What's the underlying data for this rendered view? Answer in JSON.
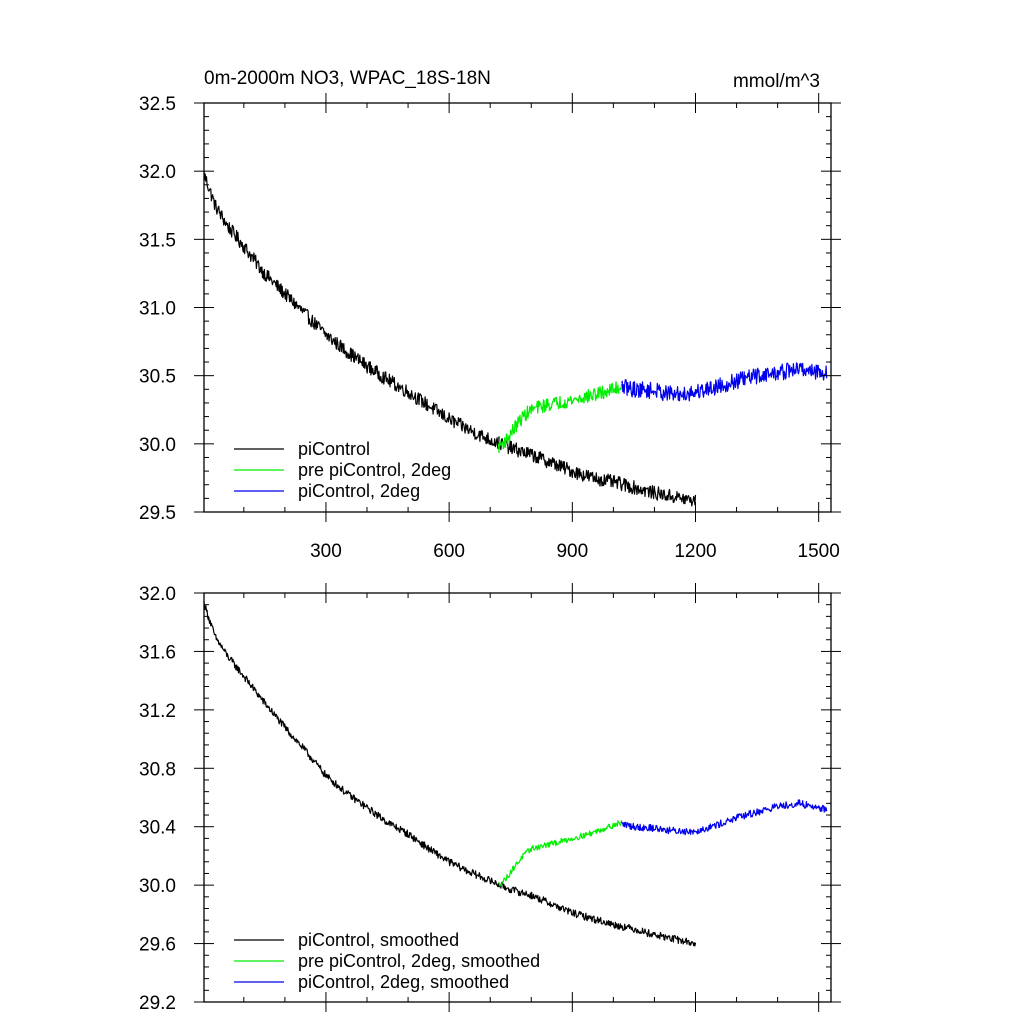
{
  "chart_data": [
    {
      "type": "line",
      "title_left": "0m-2000m NO3, WPAC_18S-18N",
      "title_right": "mmol/m^3",
      "xlim": [
        3,
        1530
      ],
      "ylim": [
        29.5,
        32.5
      ],
      "xticks": [
        300,
        600,
        900,
        1200,
        1500
      ],
      "xtick_labels": [
        "300",
        "600",
        "900",
        "1200",
        "1500"
      ],
      "yticks": [
        29.5,
        30.0,
        30.5,
        31.0,
        31.5,
        32.0,
        32.5
      ],
      "ytick_labels": [
        "29.5",
        "30.0",
        "30.5",
        "31.0",
        "31.5",
        "32.0",
        "32.5"
      ],
      "legend_position": "bottom-left",
      "series": [
        {
          "name": "piControl",
          "color": "#000000",
          "noise": 0.05,
          "x": [
            3,
            30,
            60,
            100,
            150,
            200,
            250,
            300,
            350,
            400,
            450,
            500,
            550,
            600,
            650,
            700,
            750,
            800,
            850,
            900,
            950,
            1000,
            1050,
            1100,
            1150,
            1200
          ],
          "y": [
            31.98,
            31.75,
            31.6,
            31.45,
            31.25,
            31.1,
            30.95,
            30.8,
            30.68,
            30.57,
            30.47,
            30.38,
            30.28,
            30.18,
            30.1,
            30.03,
            29.97,
            29.92,
            29.86,
            29.8,
            29.75,
            29.72,
            29.68,
            29.64,
            29.61,
            29.58
          ]
        },
        {
          "name": "pre piControl, 2deg",
          "color": "#00ee00",
          "noise": 0.05,
          "x": [
            720,
            740,
            760,
            780,
            800,
            830,
            860,
            900,
            940,
            980,
            1020
          ],
          "y": [
            29.98,
            30.03,
            30.12,
            30.2,
            30.25,
            30.28,
            30.3,
            30.32,
            30.35,
            30.38,
            30.42
          ]
        },
        {
          "name": "piControl, 2deg",
          "color": "#0000ee",
          "noise": 0.06,
          "x": [
            1020,
            1050,
            1100,
            1150,
            1200,
            1250,
            1300,
            1350,
            1400,
            1450,
            1500,
            1520
          ],
          "y": [
            30.42,
            30.4,
            30.39,
            30.36,
            30.38,
            30.42,
            30.46,
            30.5,
            30.52,
            30.55,
            30.53,
            30.52
          ]
        }
      ]
    },
    {
      "type": "line",
      "xlim": [
        3,
        1530
      ],
      "ylim": [
        29.2,
        32.0
      ],
      "xticks": [
        300,
        600,
        900,
        1200,
        1500
      ],
      "yticks": [
        29.2,
        29.6,
        30.0,
        30.4,
        30.8,
        31.2,
        31.6,
        32.0
      ],
      "ytick_labels": [
        "29.2",
        "29.6",
        "30.0",
        "30.4",
        "30.8",
        "31.2",
        "31.6",
        "32.0"
      ],
      "legend_position": "bottom-left",
      "series": [
        {
          "name": "piControl, smoothed",
          "color": "#000000",
          "noise": 0.025,
          "x": [
            3,
            30,
            60,
            100,
            150,
            200,
            250,
            300,
            350,
            400,
            450,
            500,
            550,
            600,
            650,
            700,
            750,
            800,
            850,
            900,
            950,
            1000,
            1050,
            1100,
            1150,
            1200
          ],
          "y": [
            31.93,
            31.7,
            31.57,
            31.43,
            31.25,
            31.08,
            30.92,
            30.75,
            30.63,
            30.53,
            30.43,
            30.35,
            30.25,
            30.16,
            30.09,
            30.03,
            29.97,
            29.93,
            29.87,
            29.81,
            29.77,
            29.73,
            29.7,
            29.66,
            29.63,
            29.6
          ]
        },
        {
          "name": "pre piControl, 2deg, smoothed",
          "color": "#00ee00",
          "noise": 0.02,
          "x": [
            720,
            740,
            760,
            780,
            800,
            830,
            860,
            900,
            940,
            980,
            1020
          ],
          "y": [
            30.0,
            30.05,
            30.13,
            30.2,
            30.25,
            30.27,
            30.29,
            30.32,
            30.35,
            30.39,
            30.43
          ]
        },
        {
          "name": "piControl, 2deg, smoothed",
          "color": "#0000ee",
          "noise": 0.025,
          "x": [
            1020,
            1050,
            1100,
            1150,
            1200,
            1250,
            1300,
            1350,
            1400,
            1450,
            1500,
            1520
          ],
          "y": [
            30.42,
            30.4,
            30.39,
            30.37,
            30.37,
            30.41,
            30.46,
            30.5,
            30.54,
            30.56,
            30.53,
            30.52
          ]
        }
      ]
    }
  ]
}
